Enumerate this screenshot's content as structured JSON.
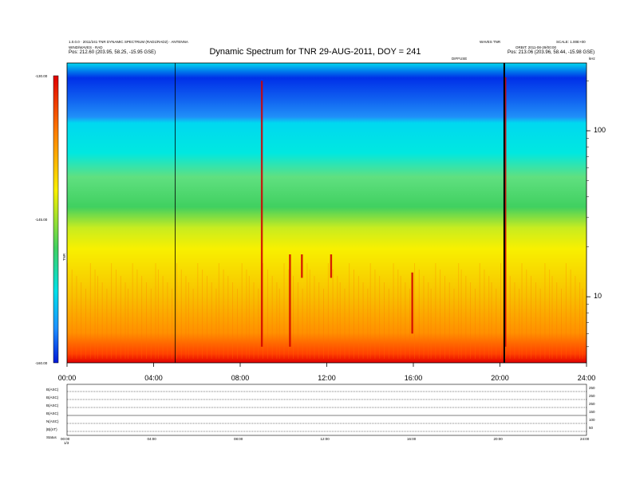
{
  "header": {
    "left_line1": "1.0.0.0 · 2011/241 TNR DYNAMIC SPECTRUM (RAD1/RAD2) · ANTENNA",
    "left_line2": "WIND/WAVES · RAD",
    "left_line3": "Pos:  212.60 (203.95, 58.25, -15.95 GSE)",
    "right_line1": "WAVES TNR",
    "right_line2": "SCALE: 1.00E+00",
    "right_line3": "ORBIT: 2011-08-29/00:00",
    "right_line4": "Pos:  213.06 (203.96, 58.44, -15.98 GSE)",
    "mid_label": "DIFFUSE",
    "corner_label": "kHz"
  },
  "chart_data": {
    "type": "heatmap",
    "title": "Dynamic Spectrum for TNR 29-AUG-2011, DOY = 241",
    "x_ticks": [
      "00:00",
      "04:00",
      "08:00",
      "12:00",
      "16:00",
      "20:00",
      "24:00"
    ],
    "x_range_hours": [
      0,
      24
    ],
    "y_right_ticks": [
      "100",
      "10"
    ],
    "y_right_scale": "log",
    "y_right_range_khz": [
      4,
      256
    ],
    "colorbar_ticks": [
      "-130.00",
      "-145.00",
      "-160.00"
    ],
    "colorbar_range": [
      -160,
      -130
    ],
    "colorbar_label": "TNR",
    "colors": {
      "strong": "#0018d8",
      "medium_strong": "#1e90ff",
      "medium": "#00e0e8",
      "mid": "#40d060",
      "low": "#f8f000",
      "background": "#ff8000",
      "burst": "#d00000"
    },
    "vertical_markers_hours": [
      5.0,
      20.2
    ],
    "bursts": [
      {
        "hour": 9.0,
        "freq_khz_high": 200,
        "freq_khz_low": 5
      },
      {
        "hour": 10.3,
        "freq_khz_high": 18,
        "freq_khz_low": 5
      },
      {
        "hour": 10.85,
        "freq_khz_high": 18,
        "freq_khz_low": 13
      },
      {
        "hour": 12.2,
        "freq_khz_high": 18,
        "freq_khz_low": 13
      },
      {
        "hour": 15.95,
        "freq_khz_high": 14,
        "freq_khz_low": 6
      },
      {
        "hour": 20.25,
        "freq_khz_high": 210,
        "freq_khz_low": 5
      }
    ]
  },
  "sub_panels": {
    "left_labels": [
      "B(ASC)",
      "B(ASC)",
      "B(ASC)",
      "B(ASC)",
      "N(ASC)",
      "|B|(nT)",
      "Status"
    ],
    "right_labels": [
      "250",
      "250",
      "250",
      "150",
      "100",
      "50"
    ],
    "x_ticks": [
      "00:00",
      "04:00",
      "08:00",
      "12:00",
      "16:00",
      "20:00",
      "24:00"
    ],
    "status_value": "1/3"
  }
}
